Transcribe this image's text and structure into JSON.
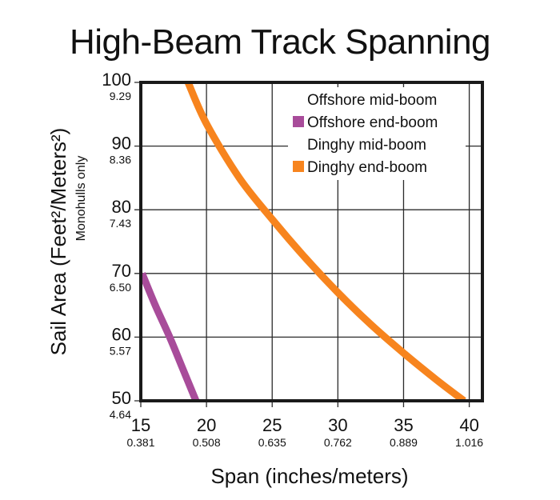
{
  "chart_data": {
    "type": "line",
    "title": "High-Beam Track Spanning",
    "xlabel": "Span (inches/meters)",
    "ylabel": "Sail Area (Feet²/Meters²)",
    "ylabel_sub": "Monohulls only",
    "xlim": [
      15,
      41
    ],
    "ylim": [
      50,
      100
    ],
    "x_ticks": [
      {
        "major": "15",
        "minor": "0.381"
      },
      {
        "major": "20",
        "minor": "0.508"
      },
      {
        "major": "25",
        "minor": "0.635"
      },
      {
        "major": "30",
        "minor": "0.762"
      },
      {
        "major": "35",
        "minor": "0.889"
      },
      {
        "major": "40",
        "minor": "1.016"
      }
    ],
    "y_ticks": [
      {
        "major": "100",
        "minor": "9.29"
      },
      {
        "major": "90",
        "minor": "8.36"
      },
      {
        "major": "80",
        "minor": "7.43"
      },
      {
        "major": "70",
        "minor": "6.50"
      },
      {
        "major": "60",
        "minor": "5.57"
      },
      {
        "major": "50",
        "minor": "4.64"
      }
    ],
    "grid": true,
    "legend_position": "top-right",
    "legend": [
      {
        "label": "Offshore mid-boom",
        "color": null
      },
      {
        "label": "Offshore end-boom",
        "color": "#a84c9a"
      },
      {
        "label": "Dinghy mid-boom",
        "color": null
      },
      {
        "label": "Dinghy end-boom",
        "color": "#f7841e"
      }
    ],
    "series": [
      {
        "name": "Offshore end-boom",
        "color": "#a84c9a",
        "x": [
          15.1,
          16.1,
          17.2,
          18.2,
          19.2
        ],
        "y": [
          70,
          65,
          60,
          55,
          50
        ]
      },
      {
        "name": "Dinghy end-boom",
        "color": "#f7841e",
        "x": [
          18.6,
          20,
          22.5,
          25,
          27.5,
          30,
          32.5,
          35,
          37.5,
          39.6
        ],
        "y": [
          100,
          93.5,
          85,
          78.5,
          72.5,
          67,
          62,
          57.5,
          53.3,
          50
        ]
      }
    ]
  },
  "colors": {
    "grid": "#2b2b2b",
    "frame": "#1a1a1a"
  }
}
